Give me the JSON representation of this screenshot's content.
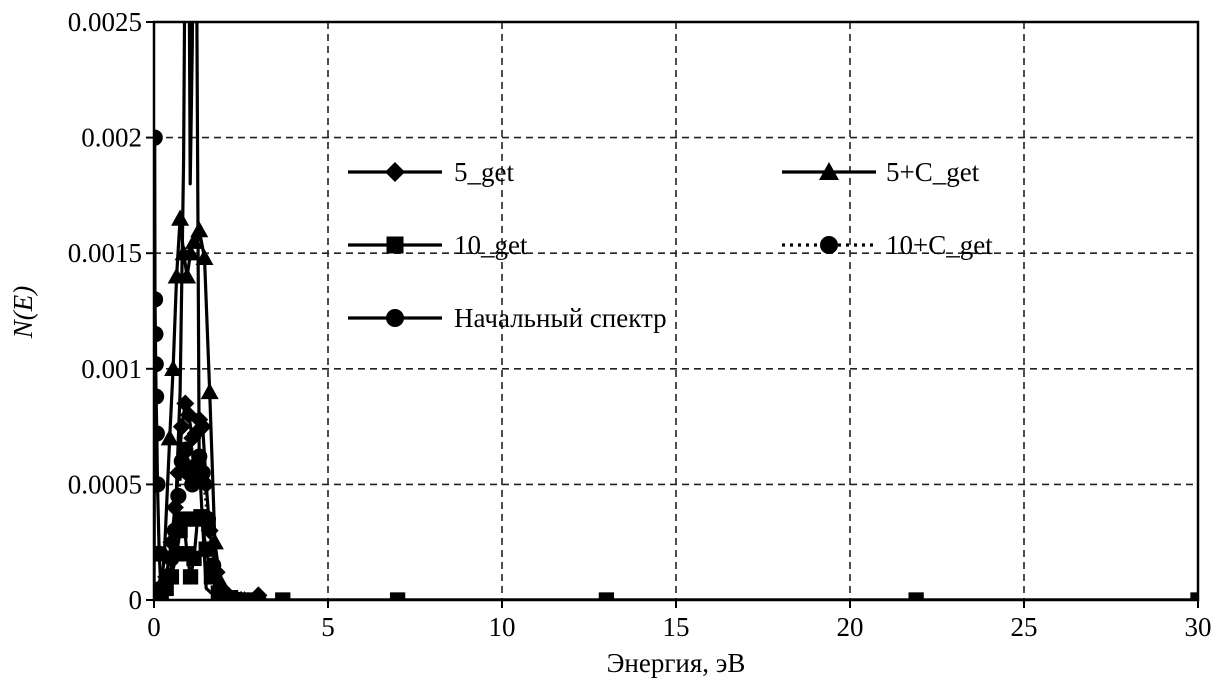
{
  "chart_data": {
    "type": "line",
    "title": "",
    "xlabel": "Энергия, эВ",
    "ylabel": "N(E)",
    "xlim": [
      0,
      30
    ],
    "ylim": [
      0,
      0.0025
    ],
    "grid": true,
    "grid_style": "dashed",
    "x_ticks": [
      0,
      5,
      10,
      15,
      20,
      25,
      30
    ],
    "x_tick_labels": [
      "0",
      "5",
      "10",
      "15",
      "20",
      "25",
      "30"
    ],
    "y_ticks": [
      0,
      0.0005,
      0.001,
      0.0015,
      0.002,
      0.0025
    ],
    "y_tick_labels": [
      "0",
      "0.0005",
      "0.001",
      "0.0015",
      "0.002",
      "0.0025"
    ],
    "legend_placement": "inside-top",
    "series": [
      {
        "name": "5_get",
        "marker": "diamond",
        "line": "solid",
        "color": "#000000",
        "x": [
          0,
          0.1,
          0.2,
          0.35,
          0.5,
          0.6,
          0.7,
          0.8,
          0.9,
          1.0,
          1.1,
          1.2,
          1.3,
          1.4,
          1.5,
          1.6,
          1.8,
          2.0,
          2.2,
          2.5,
          3.0
        ],
        "y": [
          0,
          0,
          2e-05,
          0.0001,
          0.00025,
          0.0004,
          0.00055,
          0.00075,
          0.00085,
          0.0008,
          0.0007,
          0.00072,
          0.00078,
          0.00075,
          0.0005,
          0.0003,
          0.00012,
          4e-05,
          1e-05,
          0,
          2e-05
        ]
      },
      {
        "name": "5+C_get",
        "marker": "triangle",
        "line": "solid",
        "color": "#000000",
        "x": [
          0,
          0.1,
          0.2,
          0.3,
          0.45,
          0.55,
          0.65,
          0.75,
          0.85,
          0.95,
          1.05,
          1.15,
          1.3,
          1.45,
          1.6,
          1.75,
          1.9,
          2.1,
          2.3,
          2.6,
          3.0
        ],
        "y": [
          0,
          0,
          3e-05,
          0.0002,
          0.0007,
          0.001,
          0.0014,
          0.00165,
          0.0015,
          0.0014,
          0.0015,
          0.00155,
          0.0016,
          0.00148,
          0.0009,
          0.00025,
          8e-05,
          2e-05,
          0,
          0,
          0
        ]
      },
      {
        "name": "10_get",
        "marker": "square",
        "line": "solid",
        "color": "#000000",
        "x": [
          0,
          0.1,
          0.2,
          0.35,
          0.5,
          0.65,
          0.75,
          0.85,
          0.95,
          1.05,
          1.15,
          1.25,
          1.35,
          1.5,
          1.65,
          1.85,
          2.2,
          2.5,
          2.9,
          3.7,
          7.0,
          13.0,
          21.9,
          30
        ],
        "y": [
          0,
          0,
          1e-05,
          5e-05,
          0.0001,
          0.0002,
          0.0003,
          0.00035,
          0.0002,
          0.0001,
          0.00018,
          0.00035,
          0.00036,
          0.00022,
          0.0001,
          3e-05,
          1e-05,
          0,
          0,
          0,
          0,
          0,
          0,
          0
        ]
      },
      {
        "name": "10+C_get",
        "marker": "circle",
        "line": "dotted",
        "color": "#000000",
        "x": [
          0,
          0.1,
          0.2,
          0.35,
          0.5,
          0.6,
          0.7,
          0.8,
          0.9,
          1.0,
          1.1,
          1.2,
          1.3,
          1.4,
          1.55,
          1.7,
          2.0,
          2.4,
          3.0
        ],
        "y": [
          0,
          0,
          2e-05,
          8e-05,
          0.00018,
          0.0003,
          0.00045,
          0.0006,
          0.00065,
          0.00055,
          0.0005,
          0.00058,
          0.00062,
          0.00055,
          0.00035,
          0.00015,
          3e-05,
          0,
          0
        ]
      },
      {
        "name": "Начальный спектр",
        "marker": "circle",
        "line": "solid",
        "color": "#000000",
        "x": [
          0,
          0.005,
          0.01,
          0.02,
          0.03,
          0.04,
          0.05,
          0.06,
          0.08,
          0.1,
          0.15,
          0.2,
          0.3,
          0.45,
          0.6,
          0.75,
          0.85,
          0.92,
          0.98,
          1.04,
          1.1,
          1.15,
          1.2,
          1.3,
          1.5,
          1.8,
          2.2,
          3.0,
          5.0,
          10.0,
          20.0,
          30.0
        ],
        "y": [
          0,
          0.0002,
          0.0005,
          0.002,
          0.0013,
          0.00115,
          0.00102,
          0.00088,
          0.00072,
          0.0005,
          0.0002,
          5e-05,
          2e-05,
          8e-05,
          0.0003,
          0.0009,
          0.0019,
          0.0035,
          0.0037,
          0.0018,
          0.0024,
          0.0036,
          0.0034,
          0.0006,
          5e-05,
          1e-05,
          0,
          0,
          0,
          0,
          0,
          0
        ],
        "marked_points": 12
      }
    ]
  }
}
